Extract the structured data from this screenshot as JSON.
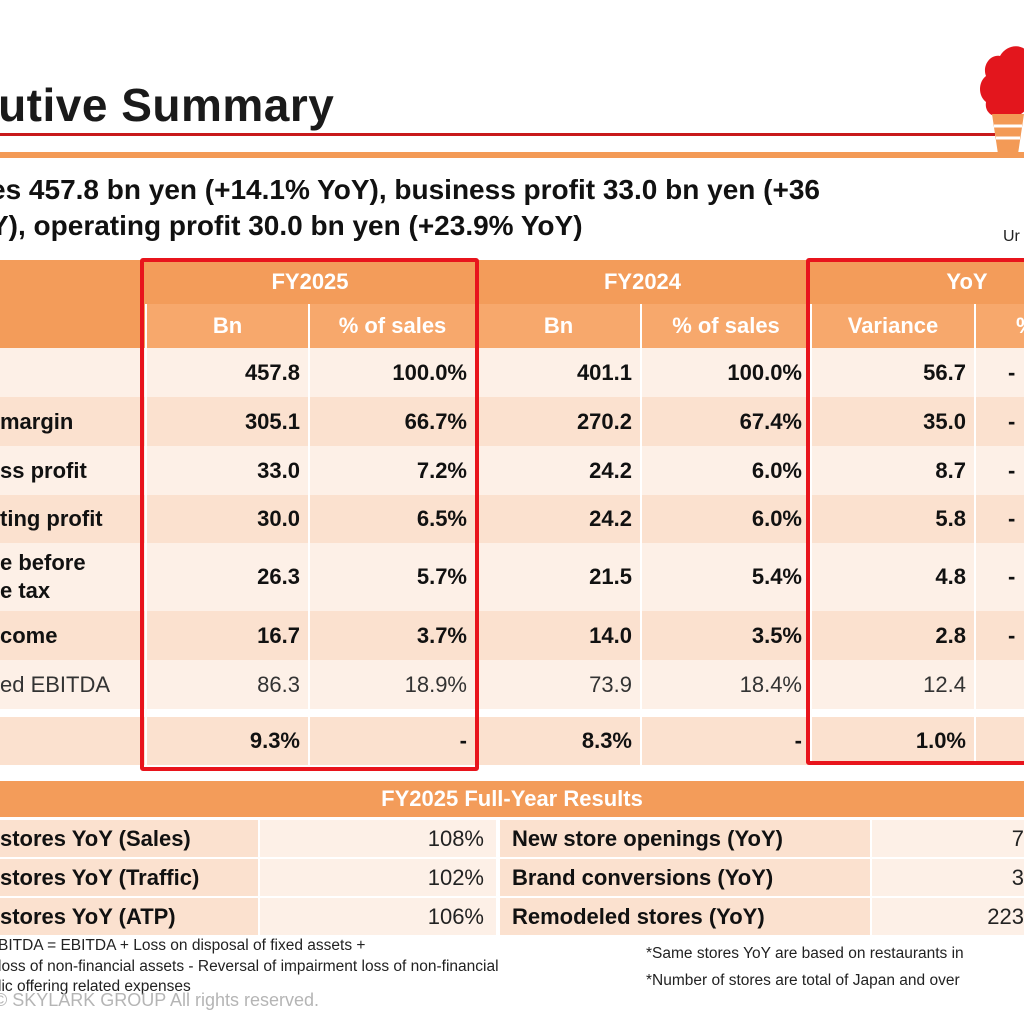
{
  "title": "cutive Summary",
  "headline": {
    "line1": "es 457.8 bn yen (+14.1% YoY), business profit 33.0 bn yen (+36",
    "line2": "Y), operating profit 30.0 bn yen (+23.9% YoY)"
  },
  "unit_note": "Ur",
  "columns": {
    "group_fy2025": "FY2025",
    "group_fy2024": "FY2024",
    "group_yoy": "YoY",
    "bn": "Bn",
    "pct_sales": "% of sales",
    "variance": "Variance",
    "pct_cut": "%"
  },
  "rows": [
    {
      "label": "",
      "fy25_bn": "457.8",
      "fy25_pct": "100.0%",
      "fy24_bn": "401.1",
      "fy24_pct": "100.0%",
      "var": "56.7",
      "yoy_pct": "-"
    },
    {
      "label": "margin",
      "fy25_bn": "305.1",
      "fy25_pct": "66.7%",
      "fy24_bn": "270.2",
      "fy24_pct": "67.4%",
      "var": "35.0",
      "yoy_pct": "-"
    },
    {
      "label": "ss profit",
      "fy25_bn": "33.0",
      "fy25_pct": "7.2%",
      "fy24_bn": "24.2",
      "fy24_pct": "6.0%",
      "var": "8.7",
      "yoy_pct": "-"
    },
    {
      "label": "ting profit",
      "fy25_bn": "30.0",
      "fy25_pct": "6.5%",
      "fy24_bn": "24.2",
      "fy24_pct": "6.0%",
      "var": "5.8",
      "yoy_pct": "-"
    },
    {
      "label": "e before",
      "label2": "e tax",
      "fy25_bn": "26.3",
      "fy25_pct": "5.7%",
      "fy24_bn": "21.5",
      "fy24_pct": "5.4%",
      "var": "4.8",
      "yoy_pct": "-"
    },
    {
      "label": "come",
      "fy25_bn": "16.7",
      "fy25_pct": "3.7%",
      "fy24_bn": "14.0",
      "fy24_pct": "3.5%",
      "var": "2.8",
      "yoy_pct": "-"
    },
    {
      "label": "ed EBITDA",
      "fy25_bn": "86.3",
      "fy25_pct": "18.9%",
      "fy24_bn": "73.9",
      "fy24_pct": "18.4%",
      "var": "12.4",
      "yoy_pct": ""
    },
    {
      "label": "",
      "fy25_bn": "9.3%",
      "fy25_pct": "-",
      "fy24_bn": "8.3%",
      "fy24_pct": "-",
      "var": "1.0%",
      "yoy_pct": ""
    }
  ],
  "results": {
    "header": "FY2025 Full-Year Results",
    "items": [
      {
        "left_label": "stores YoY (Sales)",
        "left_value": "108%",
        "right_label": "New store openings (YoY)",
        "right_value": "7"
      },
      {
        "left_label": "stores YoY (Traffic)",
        "left_value": "102%",
        "right_label": "Brand conversions (YoY)",
        "right_value": "3"
      },
      {
        "left_label": "stores YoY (ATP)",
        "left_value": "106%",
        "right_label": "Remodeled stores (YoY)",
        "right_value": "223"
      }
    ]
  },
  "footnotes": {
    "left1": "BITDA = EBITDA + Loss on disposal of fixed assets +",
    "left2": "loss of non-financial assets - Reversal of impairment loss of non-financial",
    "left3": "lic offering related expenses",
    "right1": "*Same stores YoY are based on restaurants in",
    "right2": "*Number of stores are total of Japan and over"
  },
  "copyright": "© SKYLARK GROUP All rights reserved.",
  "colors": {
    "header": "#f39c5a",
    "row_dark": "#fbe1cf",
    "row_light": "#fdf0e7",
    "highlight": "#e8141c",
    "title_rule": "#c8191b"
  },
  "icons": [
    "skylark-logo-icon"
  ]
}
